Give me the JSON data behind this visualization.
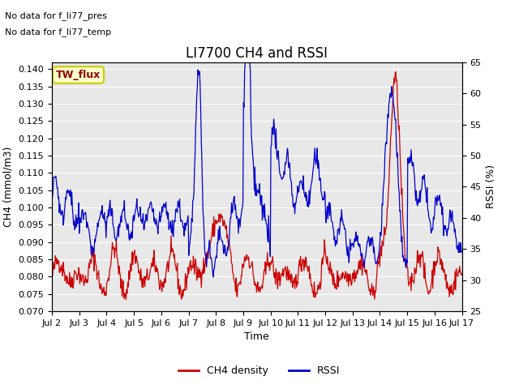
{
  "title": "LI7700 CH4 and RSSI",
  "xlabel": "Time",
  "ylabel_left": "CH4 (mmol/m3)",
  "ylabel_right": "RSSI (%)",
  "annotation_lines": [
    "No data for f_li77_pres",
    "No data for f_li77_temp"
  ],
  "legend_box_label": "TW_flux",
  "legend_box_color": "#ffffcc",
  "legend_box_edge": "#cccc00",
  "ylim_left": [
    0.07,
    0.142
  ],
  "ylim_right": [
    25,
    65
  ],
  "yticks_left": [
    0.07,
    0.075,
    0.08,
    0.085,
    0.09,
    0.095,
    0.1,
    0.105,
    0.11,
    0.115,
    0.12,
    0.125,
    0.13,
    0.135,
    0.14
  ],
  "yticks_right": [
    25,
    30,
    35,
    40,
    45,
    50,
    55,
    60,
    65
  ],
  "xtick_labels": [
    "Jul 2",
    "Jul 3",
    "Jul 4",
    "Jul 5",
    "Jul 6",
    "Jul 7",
    "Jul 8",
    "Jul 9",
    "Jul 10",
    "Jul 11",
    "Jul 12",
    "Jul 13",
    "Jul 14",
    "Jul 15",
    "Jul 16",
    "Jul 17"
  ],
  "color_ch4": "#cc0000",
  "color_rssi": "#0000cc",
  "background_color": "#e8e8e8",
  "grid_color": "#ffffff",
  "title_fontsize": 12,
  "label_fontsize": 9,
  "tick_fontsize": 8,
  "legend_fontsize": 9,
  "annot_fontsize": 8
}
